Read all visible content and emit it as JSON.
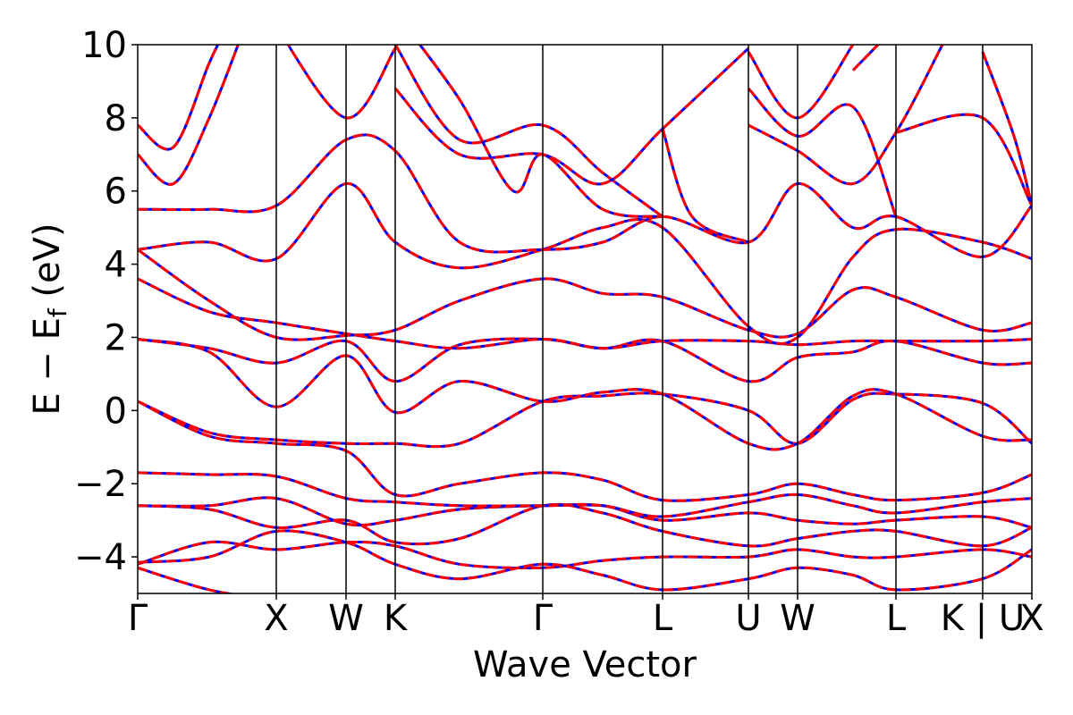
{
  "chart_data": {
    "type": "line",
    "title": "",
    "xlabel": "Wave Vector",
    "ylabel": "E − E_f (eV)",
    "ylabel_parts": {
      "main": "E − E",
      "sub": "f",
      "unit": " (eV)"
    },
    "ylim": [
      -5,
      10
    ],
    "xlim": [
      0,
      1
    ],
    "grid": false,
    "legend": "none",
    "yticks": [
      {
        "value": -4,
        "label": "−4"
      },
      {
        "value": -2,
        "label": "−2"
      },
      {
        "value": 0,
        "label": "0"
      },
      {
        "value": 2,
        "label": "2"
      },
      {
        "value": 4,
        "label": "4"
      },
      {
        "value": 6,
        "label": "6"
      },
      {
        "value": 8,
        "label": "8"
      },
      {
        "value": 10,
        "label": "10"
      }
    ],
    "kpoints": [
      {
        "label": "Γ",
        "x": 0.0
      },
      {
        "label": "X",
        "x": 0.155
      },
      {
        "label": "W",
        "x": 0.233
      },
      {
        "label": "K",
        "x": 0.288
      },
      {
        "label": "Γ",
        "x": 0.453
      },
      {
        "label": "L",
        "x": 0.587
      },
      {
        "label": "U",
        "x": 0.683
      },
      {
        "label": "W",
        "x": 0.738
      },
      {
        "label": "L",
        "x": 0.848
      },
      {
        "label": "K | U",
        "x": 0.945
      },
      {
        "label": "X",
        "x": 1.0
      }
    ],
    "series_style": [
      {
        "color": "#0000ff",
        "dash": "solid"
      },
      {
        "color": "#ff0000",
        "dash": "dashed"
      }
    ],
    "bands": [
      {
        "points": [
          [
            0,
            -4.3
          ],
          [
            0.08,
            -4.9
          ],
          [
            0.155,
            -5.2
          ]
        ]
      },
      {
        "points": [
          [
            0,
            -4.2
          ],
          [
            0.08,
            -3.6
          ],
          [
            0.155,
            -3.8
          ],
          [
            0.233,
            -3.6
          ],
          [
            0.288,
            -3.7
          ],
          [
            0.36,
            -4.2
          ],
          [
            0.453,
            -4.3
          ],
          [
            0.52,
            -4.1
          ],
          [
            0.587,
            -4.0
          ],
          [
            0.683,
            -4.0
          ],
          [
            0.738,
            -3.8
          ],
          [
            0.8,
            -4.0
          ],
          [
            0.848,
            -4.0
          ],
          [
            0.945,
            -3.8
          ],
          [
            1.0,
            -4.0
          ]
        ]
      },
      {
        "points": [
          [
            0,
            -4.15
          ],
          [
            0.08,
            -4.0
          ],
          [
            0.155,
            -3.3
          ],
          [
            0.233,
            -3.6
          ],
          [
            0.288,
            -4.2
          ],
          [
            0.36,
            -4.6
          ],
          [
            0.453,
            -4.2
          ],
          [
            0.52,
            -4.5
          ],
          [
            0.587,
            -4.9
          ],
          [
            0.683,
            -4.6
          ],
          [
            0.738,
            -4.3
          ],
          [
            0.8,
            -4.5
          ],
          [
            0.848,
            -4.9
          ],
          [
            0.945,
            -4.6
          ],
          [
            1.0,
            -3.8
          ]
        ]
      },
      {
        "points": [
          [
            0,
            -2.6
          ],
          [
            0.08,
            -2.7
          ],
          [
            0.155,
            -3.2
          ],
          [
            0.233,
            -3.0
          ],
          [
            0.288,
            -3.6
          ],
          [
            0.36,
            -3.5
          ],
          [
            0.453,
            -2.6
          ],
          [
            0.52,
            -2.8
          ],
          [
            0.587,
            -3.3
          ],
          [
            0.683,
            -3.7
          ],
          [
            0.738,
            -3.5
          ],
          [
            0.8,
            -3.3
          ],
          [
            0.848,
            -3.3
          ],
          [
            0.945,
            -3.7
          ],
          [
            1.0,
            -3.2
          ]
        ]
      },
      {
        "points": [
          [
            0,
            -2.6
          ],
          [
            0.08,
            -2.6
          ],
          [
            0.155,
            -2.4
          ],
          [
            0.233,
            -3.1
          ],
          [
            0.288,
            -3.0
          ],
          [
            0.36,
            -2.7
          ],
          [
            0.453,
            -2.6
          ],
          [
            0.52,
            -2.6
          ],
          [
            0.587,
            -3.0
          ],
          [
            0.683,
            -2.8
          ],
          [
            0.738,
            -3.0
          ],
          [
            0.8,
            -3.1
          ],
          [
            0.848,
            -3.0
          ],
          [
            0.945,
            -2.9
          ],
          [
            1.0,
            -3.2
          ]
        ]
      },
      {
        "points": [
          [
            0,
            -1.7
          ],
          [
            0.08,
            -1.75
          ],
          [
            0.155,
            -1.8
          ],
          [
            0.233,
            -2.4
          ],
          [
            0.288,
            -2.5
          ],
          [
            0.36,
            -2.6
          ],
          [
            0.453,
            -2.6
          ],
          [
            0.52,
            -2.6
          ],
          [
            0.587,
            -2.9
          ],
          [
            0.683,
            -2.5
          ],
          [
            0.738,
            -2.3
          ],
          [
            0.8,
            -2.6
          ],
          [
            0.848,
            -2.8
          ],
          [
            0.945,
            -2.5
          ],
          [
            1.0,
            -2.4
          ]
        ]
      },
      {
        "points": [
          [
            0,
            0.25
          ],
          [
            0.08,
            -0.7
          ],
          [
            0.155,
            -0.9
          ],
          [
            0.233,
            -1.1
          ],
          [
            0.288,
            -2.3
          ],
          [
            0.36,
            -2.0
          ],
          [
            0.453,
            -1.7
          ],
          [
            0.52,
            -1.9
          ],
          [
            0.587,
            -2.45
          ],
          [
            0.683,
            -2.3
          ],
          [
            0.738,
            -2.0
          ],
          [
            0.8,
            -2.3
          ],
          [
            0.848,
            -2.45
          ],
          [
            0.945,
            -2.25
          ],
          [
            1.0,
            -1.75
          ]
        ]
      },
      {
        "points": [
          [
            0,
            0.25
          ],
          [
            0.08,
            -0.6
          ],
          [
            0.155,
            -0.8
          ],
          [
            0.233,
            -0.9
          ],
          [
            0.288,
            -0.9
          ],
          [
            0.36,
            -0.9
          ],
          [
            0.453,
            0.25
          ],
          [
            0.52,
            0.4
          ],
          [
            0.587,
            0.45
          ],
          [
            0.683,
            0.0
          ],
          [
            0.738,
            -0.9
          ],
          [
            0.8,
            0.3
          ],
          [
            0.848,
            0.45
          ],
          [
            0.945,
            0.2
          ],
          [
            1.0,
            -0.9
          ]
        ]
      },
      {
        "points": [
          [
            0,
            1.95
          ],
          [
            0.08,
            1.6
          ],
          [
            0.155,
            0.1
          ],
          [
            0.233,
            1.5
          ],
          [
            0.288,
            -0.05
          ],
          [
            0.36,
            0.8
          ],
          [
            0.453,
            0.25
          ],
          [
            0.52,
            0.5
          ],
          [
            0.587,
            0.45
          ],
          [
            0.683,
            -0.9
          ],
          [
            0.738,
            -0.9
          ],
          [
            0.8,
            0.4
          ],
          [
            0.848,
            0.45
          ],
          [
            0.945,
            -0.7
          ],
          [
            1.0,
            -0.8
          ]
        ]
      },
      {
        "points": [
          [
            0,
            1.95
          ],
          [
            0.08,
            1.7
          ],
          [
            0.155,
            1.3
          ],
          [
            0.233,
            1.9
          ],
          [
            0.288,
            0.8
          ],
          [
            0.36,
            1.8
          ],
          [
            0.453,
            1.95
          ],
          [
            0.52,
            1.7
          ],
          [
            0.587,
            1.9
          ],
          [
            0.683,
            0.8
          ],
          [
            0.738,
            1.45
          ],
          [
            0.8,
            1.6
          ],
          [
            0.848,
            1.9
          ],
          [
            0.945,
            1.3
          ],
          [
            1.0,
            1.3
          ]
        ]
      },
      {
        "points": [
          [
            0,
            3.6
          ],
          [
            0.08,
            2.7
          ],
          [
            0.155,
            2.4
          ],
          [
            0.233,
            2.1
          ],
          [
            0.288,
            1.9
          ],
          [
            0.36,
            1.7
          ],
          [
            0.453,
            1.95
          ],
          [
            0.52,
            1.7
          ],
          [
            0.587,
            1.9
          ],
          [
            0.683,
            1.9
          ],
          [
            0.738,
            1.8
          ],
          [
            0.8,
            1.9
          ],
          [
            0.848,
            1.9
          ],
          [
            0.945,
            1.9
          ],
          [
            1.0,
            1.95
          ]
        ]
      },
      {
        "points": [
          [
            0,
            4.4
          ],
          [
            0.08,
            3.0
          ],
          [
            0.155,
            2.0
          ],
          [
            0.233,
            2.05
          ],
          [
            0.288,
            2.2
          ],
          [
            0.36,
            3.0
          ],
          [
            0.453,
            3.6
          ],
          [
            0.52,
            3.2
          ],
          [
            0.587,
            3.1
          ],
          [
            0.683,
            2.2
          ],
          [
            0.738,
            2.1
          ],
          [
            0.8,
            3.3
          ],
          [
            0.848,
            3.1
          ],
          [
            0.945,
            2.2
          ],
          [
            1.0,
            2.4
          ]
        ]
      },
      {
        "points": [
          [
            0,
            4.4
          ],
          [
            0.08,
            4.6
          ],
          [
            0.155,
            4.15
          ],
          [
            0.233,
            6.2
          ],
          [
            0.288,
            4.6
          ],
          [
            0.36,
            3.9
          ],
          [
            0.453,
            4.4
          ],
          [
            0.52,
            5.0
          ],
          [
            0.587,
            5.0
          ],
          [
            0.683,
            2.3
          ],
          [
            0.738,
            2.0
          ],
          [
            0.8,
            4.2
          ],
          [
            0.848,
            4.95
          ],
          [
            0.945,
            4.6
          ],
          [
            1.0,
            4.15
          ]
        ]
      },
      {
        "points": [
          [
            0,
            5.5
          ],
          [
            0.08,
            5.5
          ],
          [
            0.155,
            5.6
          ],
          [
            0.233,
            7.4
          ],
          [
            0.288,
            7.1
          ],
          [
            0.36,
            4.6
          ],
          [
            0.453,
            4.4
          ],
          [
            0.52,
            4.6
          ],
          [
            0.587,
            5.3
          ],
          [
            0.683,
            4.6
          ],
          [
            0.738,
            6.2
          ],
          [
            0.8,
            5.0
          ],
          [
            0.848,
            5.3
          ],
          [
            0.945,
            4.2
          ],
          [
            1.0,
            5.6
          ]
        ]
      },
      {
        "points": [
          [
            0,
            7.0
          ],
          [
            0.04,
            6.2
          ],
          [
            0.08,
            8.0
          ],
          [
            0.12,
            10.5
          ]
        ]
      },
      {
        "points": [
          [
            0,
            7.8
          ],
          [
            0.04,
            7.2
          ],
          [
            0.08,
            9.5
          ],
          [
            0.1,
            10.5
          ]
        ]
      },
      {
        "points": [
          [
            0.155,
            10.5
          ],
          [
            0.233,
            8.0
          ],
          [
            0.288,
            9.9
          ]
        ]
      },
      {
        "points": [
          [
            0.288,
            10.0
          ],
          [
            0.36,
            7.4
          ],
          [
            0.453,
            7.8
          ],
          [
            0.52,
            6.5
          ],
          [
            0.587,
            5.3
          ]
        ]
      },
      {
        "points": [
          [
            0.288,
            8.8
          ],
          [
            0.36,
            7.0
          ],
          [
            0.453,
            7.0
          ],
          [
            0.52,
            6.2
          ],
          [
            0.587,
            7.7
          ],
          [
            0.683,
            9.9
          ]
        ]
      },
      {
        "points": [
          [
            0.3,
            10.5
          ],
          [
            0.36,
            8.5
          ],
          [
            0.42,
            6.0
          ],
          [
            0.453,
            7.0
          ],
          [
            0.52,
            5.5
          ],
          [
            0.587,
            5.3
          ]
        ]
      },
      {
        "points": [
          [
            0.683,
            8.8
          ],
          [
            0.738,
            7.5
          ],
          [
            0.8,
            8.3
          ],
          [
            0.848,
            5.3
          ]
        ]
      },
      {
        "points": [
          [
            0.683,
            9.8
          ],
          [
            0.738,
            8.0
          ],
          [
            0.8,
            10.0
          ]
        ]
      },
      {
        "points": [
          [
            0.683,
            7.8
          ],
          [
            0.738,
            7.1
          ],
          [
            0.8,
            6.2
          ],
          [
            0.848,
            7.6
          ],
          [
            0.9,
            10.0
          ]
        ]
      },
      {
        "points": [
          [
            0.848,
            7.6
          ],
          [
            0.945,
            8.0
          ],
          [
            1.0,
            5.6
          ]
        ]
      },
      {
        "points": [
          [
            0.587,
            7.7
          ],
          [
            0.62,
            5.3
          ],
          [
            0.683,
            4.6
          ]
        ]
      },
      {
        "points": [
          [
            0.8,
            9.3
          ],
          [
            0.848,
            10.5
          ]
        ]
      },
      {
        "points": [
          [
            0.945,
            9.8
          ],
          [
            0.98,
            7.5
          ],
          [
            1.0,
            5.6
          ]
        ]
      }
    ]
  }
}
